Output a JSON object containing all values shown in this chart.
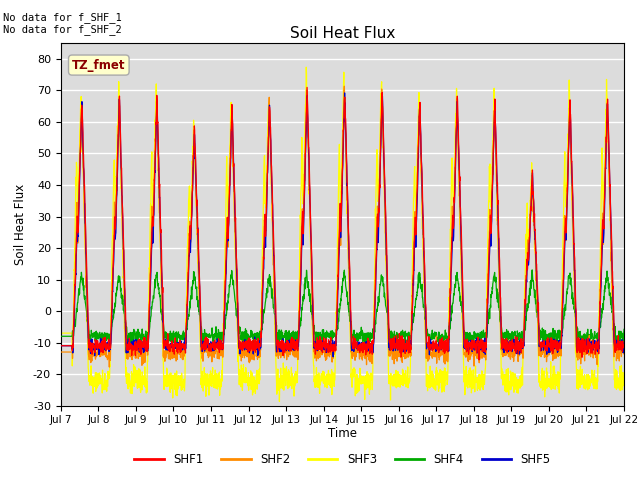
{
  "title": "Soil Heat Flux",
  "ylabel": "Soil Heat Flux",
  "xlabel": "Time",
  "ylim": [
    -30,
    85
  ],
  "ytick_values": [
    -30,
    -20,
    -10,
    0,
    10,
    20,
    30,
    40,
    50,
    60,
    70,
    80
  ],
  "xtick_labels": [
    "Jul 7",
    "Jul 8",
    "Jul 9",
    "Jul 10",
    "Jul 11",
    "Jul 12",
    "Jul 13",
    "Jul 14",
    "Jul 15",
    "Jul 16",
    "Jul 17",
    "Jul 18",
    "Jul 19",
    "Jul 20",
    "Jul 21",
    "Jul 22"
  ],
  "colors": {
    "SHF1": "#FF0000",
    "SHF2": "#FF8C00",
    "SHF3": "#FFFF00",
    "SHF4": "#00AA00",
    "SHF5": "#0000CC"
  },
  "background_color": "#DCDCDC",
  "no_data_text1": "No data for f_SHF_1",
  "no_data_text2": "No data for f_SHF_2",
  "tz_label": "TZ_fmet",
  "legend_entries": [
    "SHF1",
    "SHF2",
    "SHF3",
    "SHF4",
    "SHF5"
  ],
  "num_days": 15,
  "points_per_day": 144
}
